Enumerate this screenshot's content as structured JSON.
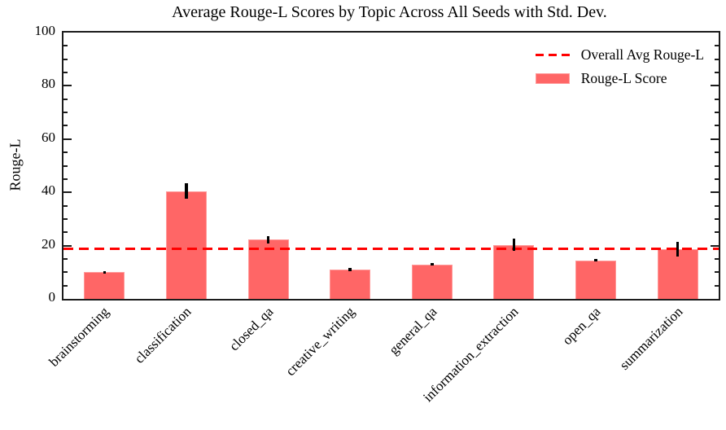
{
  "chart_data": {
    "type": "bar",
    "title": "Average Rouge-L Scores by Topic Across All Seeds with Std. Dev.",
    "xlabel": "",
    "ylabel": "Rouge-L",
    "ylim": [
      0,
      100
    ],
    "yticks_major": [
      0,
      20,
      40,
      60,
      80,
      100
    ],
    "minor_tick_step": 5,
    "grid": false,
    "categories": [
      "brainstorming",
      "classification",
      "closed_qa",
      "creative_writing",
      "general_qa",
      "information_extraction",
      "open_qa",
      "summarization"
    ],
    "series": [
      {
        "name": "Rouge-L Score",
        "values": [
          10.0,
          40.5,
          22.2,
          11.0,
          13.0,
          20.3,
          14.5,
          18.7
        ],
        "std_dev": [
          0.5,
          3.0,
          1.4,
          0.5,
          0.4,
          2.3,
          0.5,
          2.8
        ]
      }
    ],
    "overall_avg_line": 18.8,
    "legend": [
      {
        "label": "Overall Avg Rouge-L",
        "type": "dashed-line",
        "color": "#ff0000"
      },
      {
        "label": "Rouge-L Score",
        "type": "bar-swatch",
        "color": "#ff6666"
      }
    ],
    "legend_position": "upper right",
    "colors": {
      "bar_fill": "#ff6666",
      "bar_edge": "#ff9999",
      "avg_line": "#ff0000",
      "error_bar": "#000000",
      "axis": "#1c1c1c"
    }
  }
}
